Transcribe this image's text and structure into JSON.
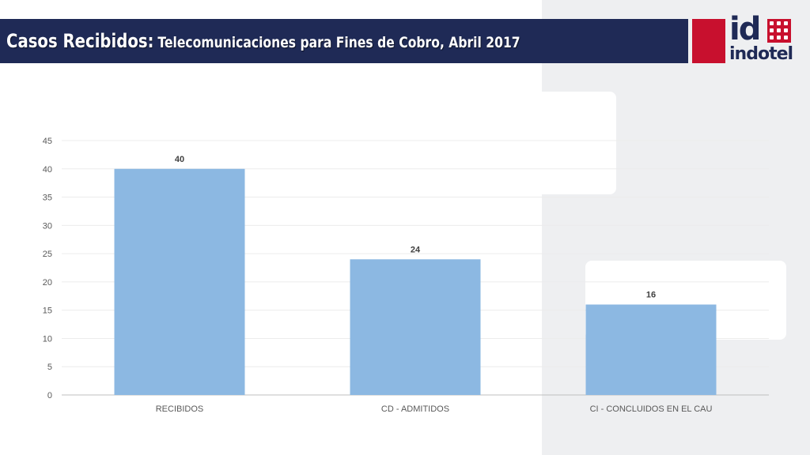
{
  "header": {
    "title_main": "Casos Recibidos:",
    "title_sub": "Telecomunicaciones para Fines de Cobro, Abril 2017"
  },
  "logo": {
    "mark": "id",
    "word": "indotel"
  },
  "colors": {
    "title_bar": "#1f2a56",
    "accent_red": "#c8102e",
    "bar": "#8cb8e2",
    "axis_text": "#595959"
  },
  "chart_data": {
    "type": "bar",
    "categories": [
      "RECIBIDOS",
      "CD - ADMITIDOS",
      "CI - CONCLUIDOS EN EL CAU"
    ],
    "values": [
      40,
      24,
      16
    ],
    "data_labels": [
      "40",
      "24",
      "16"
    ],
    "ylim": [
      0,
      45
    ],
    "yticks": [
      0,
      5,
      10,
      15,
      20,
      25,
      30,
      35,
      40,
      45
    ],
    "grid": true,
    "legend": "none"
  }
}
